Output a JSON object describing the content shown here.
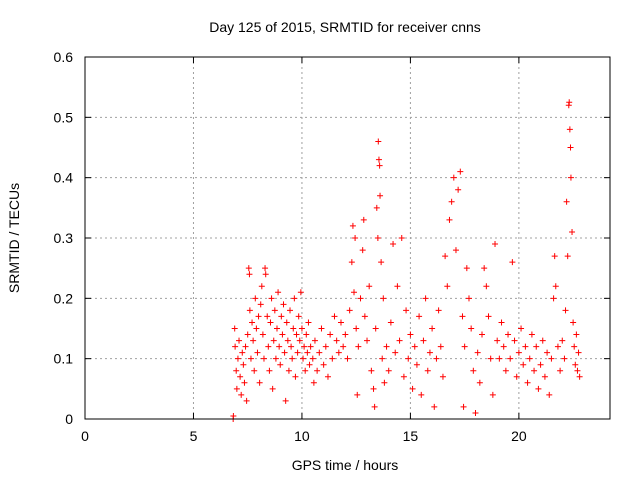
{
  "chart_data": {
    "type": "scatter",
    "title": "Day 125 of 2015, SRMTID for receiver cnns",
    "xlabel": "GPS time / hours",
    "ylabel": "SRMTID / TECUs",
    "xlim": [
      0,
      24.2
    ],
    "ylim": [
      0,
      0.6
    ],
    "x_ticks": [
      0,
      5,
      10,
      15,
      20
    ],
    "y_ticks": [
      0,
      0.1,
      0.2,
      0.3,
      0.4,
      0.5,
      0.6
    ],
    "x_tick_labels": [
      "0",
      "5",
      "10",
      "15",
      "20"
    ],
    "y_tick_labels": [
      "0",
      "0.1",
      "0.2",
      "0.3",
      "0.4",
      "0.5",
      "0.6"
    ],
    "grid": true,
    "marker": "+",
    "color": "#ff0000",
    "series": [
      {
        "name": "SRMTID",
        "points": [
          [
            6.83,
            0.0
          ],
          [
            6.84,
            0.005
          ],
          [
            6.9,
            0.15
          ],
          [
            6.92,
            0.12
          ],
          [
            6.97,
            0.08
          ],
          [
            7.0,
            0.05
          ],
          [
            7.05,
            0.1
          ],
          [
            7.1,
            0.13
          ],
          [
            7.15,
            0.07
          ],
          [
            7.2,
            0.04
          ],
          [
            7.25,
            0.11
          ],
          [
            7.3,
            0.09
          ],
          [
            7.35,
            0.06
          ],
          [
            7.4,
            0.12
          ],
          [
            7.45,
            0.03
          ],
          [
            7.5,
            0.14
          ],
          [
            7.55,
            0.25
          ],
          [
            7.58,
            0.24
          ],
          [
            7.6,
            0.18
          ],
          [
            7.65,
            0.1
          ],
          [
            7.7,
            0.16
          ],
          [
            7.75,
            0.13
          ],
          [
            7.8,
            0.08
          ],
          [
            7.85,
            0.2
          ],
          [
            7.9,
            0.15
          ],
          [
            7.95,
            0.11
          ],
          [
            8.0,
            0.17
          ],
          [
            8.05,
            0.06
          ],
          [
            8.1,
            0.19
          ],
          [
            8.15,
            0.22
          ],
          [
            8.2,
            0.14
          ],
          [
            8.25,
            0.1
          ],
          [
            8.3,
            0.25
          ],
          [
            8.33,
            0.24
          ],
          [
            8.4,
            0.17
          ],
          [
            8.45,
            0.12
          ],
          [
            8.5,
            0.08
          ],
          [
            8.55,
            0.16
          ],
          [
            8.6,
            0.2
          ],
          [
            8.65,
            0.05
          ],
          [
            8.7,
            0.13
          ],
          [
            8.75,
            0.18
          ],
          [
            8.8,
            0.1
          ],
          [
            8.85,
            0.15
          ],
          [
            8.9,
            0.21
          ],
          [
            8.95,
            0.12
          ],
          [
            9.0,
            0.09
          ],
          [
            9.05,
            0.17
          ],
          [
            9.1,
            0.14
          ],
          [
            9.15,
            0.19
          ],
          [
            9.2,
            0.11
          ],
          [
            9.25,
            0.03
          ],
          [
            9.3,
            0.16
          ],
          [
            9.35,
            0.13
          ],
          [
            9.4,
            0.08
          ],
          [
            9.45,
            0.18
          ],
          [
            9.5,
            0.12
          ],
          [
            9.55,
            0.1
          ],
          [
            9.6,
            0.15
          ],
          [
            9.65,
            0.2
          ],
          [
            9.7,
            0.07
          ],
          [
            9.75,
            0.14
          ],
          [
            9.8,
            0.11
          ],
          [
            9.85,
            0.17
          ],
          [
            9.9,
            0.13
          ],
          [
            9.95,
            0.21
          ],
          [
            10.0,
            0.15
          ],
          [
            10.05,
            0.1
          ],
          [
            10.1,
            0.12
          ],
          [
            10.15,
            0.08
          ],
          [
            10.2,
            0.14
          ],
          [
            10.25,
            0.11
          ],
          [
            10.3,
            0.16
          ],
          [
            10.35,
            0.09
          ],
          [
            10.4,
            0.12
          ],
          [
            10.5,
            0.1
          ],
          [
            10.55,
            0.06
          ],
          [
            10.6,
            0.13
          ],
          [
            10.7,
            0.08
          ],
          [
            10.8,
            0.11
          ],
          [
            10.9,
            0.15
          ],
          [
            11.0,
            0.09
          ],
          [
            11.1,
            0.12
          ],
          [
            11.2,
            0.07
          ],
          [
            11.3,
            0.14
          ],
          [
            11.4,
            0.1
          ],
          [
            11.5,
            0.17
          ],
          [
            11.6,
            0.13
          ],
          [
            11.7,
            0.11
          ],
          [
            11.8,
            0.16
          ],
          [
            11.9,
            0.12
          ],
          [
            12.0,
            0.14
          ],
          [
            12.1,
            0.1
          ],
          [
            12.2,
            0.18
          ],
          [
            12.3,
            0.26
          ],
          [
            12.35,
            0.32
          ],
          [
            12.4,
            0.21
          ],
          [
            12.45,
            0.3
          ],
          [
            12.5,
            0.15
          ],
          [
            12.55,
            0.04
          ],
          [
            12.6,
            0.12
          ],
          [
            12.7,
            0.2
          ],
          [
            12.8,
            0.28
          ],
          [
            12.85,
            0.33
          ],
          [
            12.9,
            0.17
          ],
          [
            13.0,
            0.13
          ],
          [
            13.1,
            0.22
          ],
          [
            13.2,
            0.08
          ],
          [
            13.3,
            0.05
          ],
          [
            13.35,
            0.02
          ],
          [
            13.4,
            0.15
          ],
          [
            13.45,
            0.35
          ],
          [
            13.5,
            0.3
          ],
          [
            13.52,
            0.46
          ],
          [
            13.55,
            0.43
          ],
          [
            13.58,
            0.42
          ],
          [
            13.6,
            0.37
          ],
          [
            13.65,
            0.26
          ],
          [
            13.7,
            0.1
          ],
          [
            13.75,
            0.2
          ],
          [
            13.8,
            0.06
          ],
          [
            13.9,
            0.12
          ],
          [
            14.0,
            0.08
          ],
          [
            14.1,
            0.16
          ],
          [
            14.2,
            0.29
          ],
          [
            14.3,
            0.11
          ],
          [
            14.4,
            0.22
          ],
          [
            14.5,
            0.13
          ],
          [
            14.6,
            0.3
          ],
          [
            14.7,
            0.07
          ],
          [
            14.8,
            0.18
          ],
          [
            14.9,
            0.1
          ],
          [
            15.0,
            0.14
          ],
          [
            15.1,
            0.05
          ],
          [
            15.2,
            0.12
          ],
          [
            15.3,
            0.09
          ],
          [
            15.4,
            0.17
          ],
          [
            15.5,
            0.04
          ],
          [
            15.6,
            0.13
          ],
          [
            15.7,
            0.2
          ],
          [
            15.8,
            0.08
          ],
          [
            15.9,
            0.11
          ],
          [
            16.0,
            0.15
          ],
          [
            16.1,
            0.02
          ],
          [
            16.2,
            0.1
          ],
          [
            16.3,
            0.18
          ],
          [
            16.4,
            0.12
          ],
          [
            16.5,
            0.07
          ],
          [
            16.6,
            0.27
          ],
          [
            16.7,
            0.22
          ],
          [
            16.8,
            0.33
          ],
          [
            16.9,
            0.36
          ],
          [
            17.0,
            0.4
          ],
          [
            17.1,
            0.28
          ],
          [
            17.2,
            0.38
          ],
          [
            17.3,
            0.41
          ],
          [
            17.4,
            0.17
          ],
          [
            17.45,
            0.02
          ],
          [
            17.5,
            0.12
          ],
          [
            17.6,
            0.25
          ],
          [
            17.7,
            0.2
          ],
          [
            17.8,
            0.15
          ],
          [
            17.9,
            0.08
          ],
          [
            18.0,
            0.01
          ],
          [
            18.1,
            0.11
          ],
          [
            18.2,
            0.06
          ],
          [
            18.3,
            0.14
          ],
          [
            18.4,
            0.25
          ],
          [
            18.5,
            0.22
          ],
          [
            18.6,
            0.17
          ],
          [
            18.7,
            0.1
          ],
          [
            18.8,
            0.04
          ],
          [
            18.9,
            0.29
          ],
          [
            19.0,
            0.13
          ],
          [
            19.1,
            0.1
          ],
          [
            19.2,
            0.16
          ],
          [
            19.3,
            0.12
          ],
          [
            19.4,
            0.08
          ],
          [
            19.5,
            0.14
          ],
          [
            19.6,
            0.1
          ],
          [
            19.7,
            0.26
          ],
          [
            19.8,
            0.13
          ],
          [
            19.9,
            0.07
          ],
          [
            20.0,
            0.11
          ],
          [
            20.1,
            0.15
          ],
          [
            20.2,
            0.09
          ],
          [
            20.3,
            0.12
          ],
          [
            20.4,
            0.06
          ],
          [
            20.5,
            0.1
          ],
          [
            20.6,
            0.14
          ],
          [
            20.7,
            0.08
          ],
          [
            20.8,
            0.12
          ],
          [
            20.9,
            0.05
          ],
          [
            21.0,
            0.09
          ],
          [
            21.1,
            0.13
          ],
          [
            21.2,
            0.07
          ],
          [
            21.3,
            0.11
          ],
          [
            21.4,
            0.04
          ],
          [
            21.5,
            0.1
          ],
          [
            21.6,
            0.2
          ],
          [
            21.65,
            0.27
          ],
          [
            21.7,
            0.22
          ],
          [
            21.8,
            0.12
          ],
          [
            21.9,
            0.08
          ],
          [
            22.0,
            0.13
          ],
          [
            22.1,
            0.1
          ],
          [
            22.15,
            0.18
          ],
          [
            22.2,
            0.36
          ],
          [
            22.25,
            0.27
          ],
          [
            22.3,
            0.52
          ],
          [
            22.32,
            0.525
          ],
          [
            22.35,
            0.48
          ],
          [
            22.38,
            0.45
          ],
          [
            22.4,
            0.4
          ],
          [
            22.45,
            0.31
          ],
          [
            22.5,
            0.16
          ],
          [
            22.55,
            0.12
          ],
          [
            22.6,
            0.09
          ],
          [
            22.65,
            0.14
          ],
          [
            22.7,
            0.08
          ],
          [
            22.75,
            0.11
          ],
          [
            22.8,
            0.07
          ]
        ]
      }
    ]
  }
}
